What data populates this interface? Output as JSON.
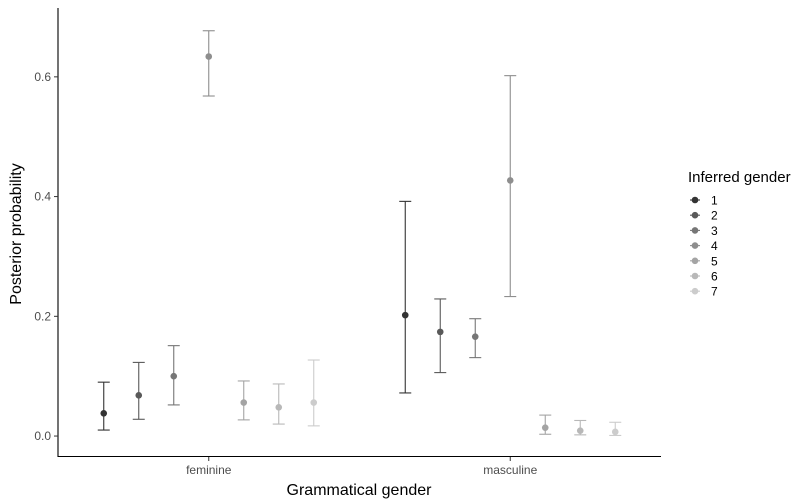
{
  "chart_data": {
    "type": "scatter",
    "title": "",
    "xlabel": "Grammatical gender",
    "ylabel": "Posterior probability",
    "categories": [
      "feminine",
      "masculine"
    ],
    "ylim": [
      -0.035,
      0.715
    ],
    "yticks": [
      0.0,
      0.2,
      0.4,
      0.6
    ],
    "ytick_labels": [
      "0.0",
      "0.2",
      "0.4",
      "0.6"
    ],
    "grid": false,
    "legend": {
      "title": "Inferred gender",
      "position": "right"
    },
    "series": [
      {
        "name": "1",
        "color": "#333333",
        "points": [
          {
            "x": "feminine",
            "y": 0.038,
            "lower": 0.01,
            "upper": 0.09
          },
          {
            "x": "masculine",
            "y": 0.202,
            "lower": 0.072,
            "upper": 0.392
          }
        ]
      },
      {
        "name": "2",
        "color": "#595959",
        "points": [
          {
            "x": "feminine",
            "y": 0.068,
            "lower": 0.028,
            "upper": 0.123
          },
          {
            "x": "masculine",
            "y": 0.174,
            "lower": 0.106,
            "upper": 0.229
          }
        ]
      },
      {
        "name": "3",
        "color": "#767676",
        "points": [
          {
            "x": "feminine",
            "y": 0.1,
            "lower": 0.052,
            "upper": 0.151
          },
          {
            "x": "masculine",
            "y": 0.166,
            "lower": 0.131,
            "upper": 0.196
          }
        ]
      },
      {
        "name": "4",
        "color": "#8e8e8e",
        "points": [
          {
            "x": "feminine",
            "y": 0.634,
            "lower": 0.568,
            "upper": 0.677
          },
          {
            "x": "masculine",
            "y": 0.427,
            "lower": 0.233,
            "upper": 0.602
          }
        ]
      },
      {
        "name": "5",
        "color": "#a4a4a4",
        "points": [
          {
            "x": "feminine",
            "y": 0.056,
            "lower": 0.027,
            "upper": 0.092
          },
          {
            "x": "masculine",
            "y": 0.014,
            "lower": 0.003,
            "upper": 0.035
          }
        ]
      },
      {
        "name": "6",
        "color": "#b8b8b8",
        "points": [
          {
            "x": "feminine",
            "y": 0.048,
            "lower": 0.02,
            "upper": 0.087
          },
          {
            "x": "masculine",
            "y": 0.009,
            "lower": 0.002,
            "upper": 0.026
          }
        ]
      },
      {
        "name": "7",
        "color": "#cccccc",
        "points": [
          {
            "x": "feminine",
            "y": 0.056,
            "lower": 0.017,
            "upper": 0.127
          },
          {
            "x": "masculine",
            "y": 0.007,
            "lower": 0.001,
            "upper": 0.023
          }
        ]
      }
    ]
  }
}
